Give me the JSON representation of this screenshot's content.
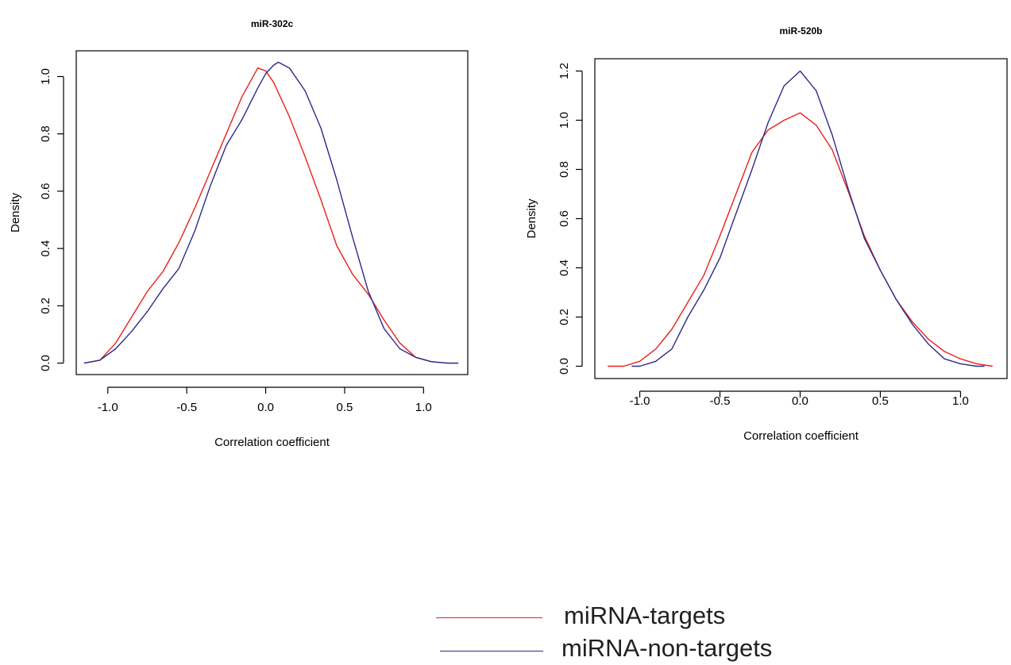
{
  "colors": {
    "targets": "#e8211d",
    "non_targets": "#2b2b8c",
    "axis": "#000000"
  },
  "legend": {
    "items": [
      {
        "label": "miRNA-targets",
        "color": "#e8211d"
      },
      {
        "label": "miRNA-non-targets",
        "color": "#2b2b8c"
      }
    ]
  },
  "chart_data": [
    {
      "type": "line",
      "title": "miR-302c",
      "xlabel": "Correlation coefficient",
      "ylabel": "Density",
      "xlim": [
        -1.2,
        1.28
      ],
      "ylim": [
        -0.04,
        1.09
      ],
      "xticks": [
        -1.0,
        -0.5,
        0.0,
        0.5,
        1.0
      ],
      "xtick_labels": [
        "-1.0",
        "-0.5",
        "0.0",
        "0.5",
        "1.0"
      ],
      "yticks": [
        0.0,
        0.2,
        0.4,
        0.6,
        0.8,
        1.0
      ],
      "ytick_labels": [
        "0.0",
        "0.2",
        "0.4",
        "0.6",
        "0.8",
        "1.0"
      ],
      "series": [
        {
          "name": "miRNA-targets",
          "color": "#e8211d",
          "x": [
            -1.15,
            -1.05,
            -0.95,
            -0.85,
            -0.75,
            -0.65,
            -0.55,
            -0.45,
            -0.35,
            -0.25,
            -0.15,
            -0.05,
            0.0,
            0.05,
            0.15,
            0.25,
            0.35,
            0.45,
            0.55,
            0.65,
            0.75,
            0.85,
            0.95,
            1.05,
            1.15,
            1.22
          ],
          "y": [
            0.0,
            0.01,
            0.07,
            0.16,
            0.25,
            0.32,
            0.42,
            0.54,
            0.67,
            0.8,
            0.93,
            1.03,
            1.02,
            0.98,
            0.86,
            0.72,
            0.57,
            0.41,
            0.31,
            0.24,
            0.15,
            0.07,
            0.02,
            0.005,
            0.0,
            0.0
          ]
        },
        {
          "name": "miRNA-non-targets",
          "color": "#2b2b8c",
          "x": [
            -1.15,
            -1.05,
            -0.95,
            -0.85,
            -0.75,
            -0.65,
            -0.55,
            -0.45,
            -0.35,
            -0.25,
            -0.15,
            -0.05,
            0.0,
            0.05,
            0.08,
            0.15,
            0.25,
            0.35,
            0.45,
            0.55,
            0.65,
            0.75,
            0.85,
            0.95,
            1.05,
            1.15,
            1.22
          ],
          "y": [
            0.0,
            0.01,
            0.05,
            0.11,
            0.18,
            0.26,
            0.33,
            0.46,
            0.62,
            0.76,
            0.85,
            0.96,
            1.01,
            1.04,
            1.05,
            1.03,
            0.95,
            0.82,
            0.64,
            0.44,
            0.25,
            0.12,
            0.05,
            0.02,
            0.005,
            0.0,
            0.0
          ]
        }
      ]
    },
    {
      "type": "line",
      "title": "miR-520b",
      "xlabel": "Correlation coefficient",
      "ylabel": "Density",
      "xlim": [
        -1.28,
        1.29
      ],
      "ylim": [
        -0.05,
        1.25
      ],
      "xticks": [
        -1.0,
        -0.5,
        0.0,
        0.5,
        1.0
      ],
      "xtick_labels": [
        "-1.0",
        "-0.5",
        "0.0",
        "0.5",
        "1.0"
      ],
      "yticks": [
        0.0,
        0.2,
        0.4,
        0.6,
        0.8,
        1.0,
        1.2
      ],
      "ytick_labels": [
        "0.0",
        "0.2",
        "0.4",
        "0.6",
        "0.8",
        "1.0",
        "1.2"
      ],
      "series": [
        {
          "name": "miRNA-targets",
          "color": "#e8211d",
          "x": [
            -1.2,
            -1.1,
            -1.0,
            -0.9,
            -0.8,
            -0.7,
            -0.6,
            -0.5,
            -0.4,
            -0.3,
            -0.2,
            -0.1,
            0.0,
            0.1,
            0.2,
            0.3,
            0.4,
            0.5,
            0.6,
            0.7,
            0.8,
            0.9,
            1.0,
            1.1,
            1.2
          ],
          "y": [
            0.0,
            0.0,
            0.02,
            0.07,
            0.15,
            0.26,
            0.37,
            0.53,
            0.7,
            0.87,
            0.96,
            1.0,
            1.03,
            0.98,
            0.88,
            0.71,
            0.53,
            0.39,
            0.27,
            0.18,
            0.11,
            0.06,
            0.03,
            0.01,
            0.0
          ]
        },
        {
          "name": "miRNA-non-targets",
          "color": "#2b2b8c",
          "x": [
            -1.05,
            -1.0,
            -0.9,
            -0.8,
            -0.7,
            -0.6,
            -0.5,
            -0.4,
            -0.3,
            -0.2,
            -0.1,
            0.0,
            0.1,
            0.2,
            0.3,
            0.4,
            0.5,
            0.6,
            0.7,
            0.8,
            0.9,
            1.0,
            1.1,
            1.15
          ],
          "y": [
            0.0,
            0.0,
            0.02,
            0.07,
            0.2,
            0.31,
            0.44,
            0.62,
            0.8,
            0.99,
            1.14,
            1.2,
            1.12,
            0.94,
            0.72,
            0.52,
            0.39,
            0.27,
            0.17,
            0.09,
            0.03,
            0.01,
            0.0,
            0.0
          ]
        }
      ]
    }
  ]
}
